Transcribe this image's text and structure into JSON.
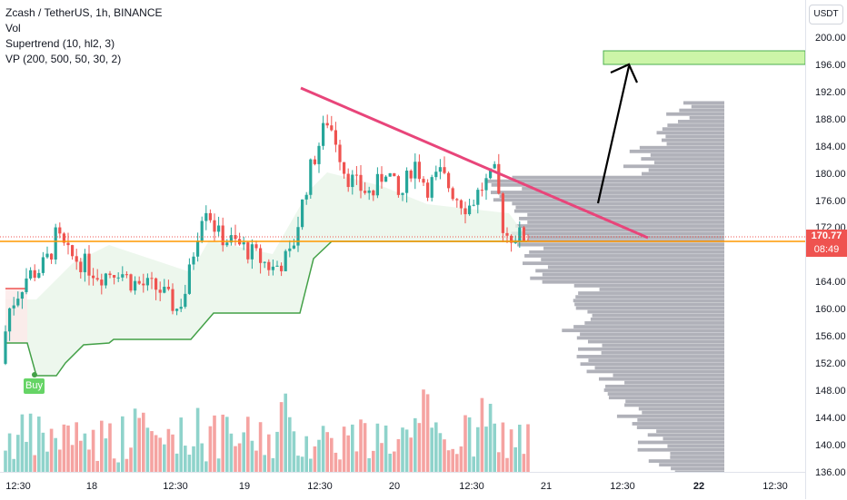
{
  "legend": {
    "symbol": "Zcash / TetherUS, 1h, BINANCE",
    "vol": "Vol",
    "supertrend": "Supertrend (10, hl2, 3)",
    "vp": "VP (200, 500, 50, 30, 2)"
  },
  "currency": "USDT",
  "price_axis": [
    "200.00",
    "196.00",
    "192.00",
    "188.00",
    "184.00",
    "180.00",
    "176.00",
    "172.00",
    "164.00",
    "160.00",
    "156.00",
    "152.00",
    "148.00",
    "144.00",
    "140.00",
    "136.00"
  ],
  "time_axis": [
    {
      "label": "12:30",
      "bold": false
    },
    {
      "label": "18",
      "bold": false
    },
    {
      "label": "12:30",
      "bold": false
    },
    {
      "label": "19",
      "bold": false
    },
    {
      "label": "12:30",
      "bold": false
    },
    {
      "label": "20",
      "bold": false
    },
    {
      "label": "12:30",
      "bold": false
    },
    {
      "label": "21",
      "bold": false
    },
    {
      "label": "12:30",
      "bold": false
    },
    {
      "label": "22",
      "bold": true
    },
    {
      "label": "12:30",
      "bold": false
    }
  ],
  "current_price": "170.77",
  "countdown": "08:49",
  "buy_signal": "Buy",
  "colors": {
    "up": "#26a69a",
    "down": "#ef5350",
    "vol_up": "#8fd3cb",
    "vol_down": "#f5a3a1",
    "supertrend": "#43a047",
    "trendline": "#e8457a",
    "target_box": "#ccf5a8",
    "vp": "#a2a3ad",
    "current_line": "#ff9800"
  }
}
